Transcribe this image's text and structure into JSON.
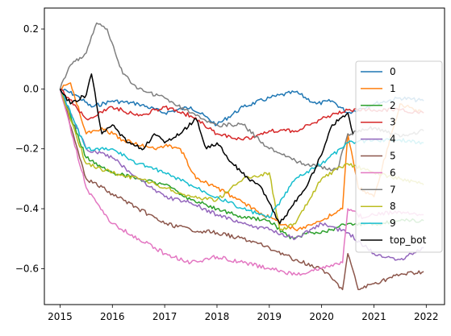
{
  "chart_data": {
    "type": "line",
    "title": "",
    "xlabel": "",
    "ylabel": "",
    "xlim": [
      2014.7,
      2022.35
    ],
    "ylim": [
      -0.72,
      0.27
    ],
    "x_ticks": [
      2015,
      2016,
      2017,
      2018,
      2019,
      2020,
      2021,
      2022
    ],
    "x_tick_labels": [
      "2015",
      "2016",
      "2017",
      "2018",
      "2019",
      "2020",
      "2021",
      "2022"
    ],
    "y_ticks": [
      -0.6,
      -0.4,
      -0.2,
      0.0,
      0.2
    ],
    "y_tick_labels": [
      "−0.6",
      "−0.4",
      "−0.2",
      "0.0",
      "0.2"
    ],
    "grid": false,
    "legend_position": "right",
    "series": [
      {
        "name": "0",
        "color": "#1f77b4",
        "x": [
          2015.0,
          2015.3,
          2015.6,
          2016.0,
          2016.5,
          2017.0,
          2017.5,
          2018.0,
          2018.5,
          2019.0,
          2019.5,
          2019.9,
          2020.2,
          2020.5,
          2021.0,
          2021.5,
          2021.95
        ],
        "y": [
          0.0,
          -0.02,
          -0.06,
          -0.04,
          -0.05,
          -0.08,
          -0.06,
          -0.12,
          -0.06,
          -0.03,
          -0.01,
          -0.05,
          -0.04,
          -0.08,
          -0.05,
          -0.03,
          -0.04
        ]
      },
      {
        "name": "1",
        "color": "#ff7f0e",
        "x": [
          2015.0,
          2015.2,
          2015.5,
          2015.8,
          2016.2,
          2016.8,
          2017.0,
          2017.3,
          2017.6,
          2018.0,
          2018.5,
          2019.0,
          2019.5,
          2020.0,
          2020.4,
          2020.5,
          2020.7,
          2021.0,
          2021.5,
          2021.95
        ],
        "y": [
          0.0,
          0.02,
          -0.15,
          -0.13,
          -0.17,
          -0.2,
          -0.19,
          -0.2,
          -0.3,
          -0.33,
          -0.38,
          -0.43,
          -0.47,
          -0.44,
          -0.4,
          -0.15,
          -0.33,
          -0.36,
          -0.05,
          -0.08
        ]
      },
      {
        "name": "2",
        "color": "#2ca02c",
        "x": [
          2015.0,
          2015.5,
          2016.0,
          2016.5,
          2017.0,
          2017.5,
          2018.0,
          2018.5,
          2019.0,
          2019.4,
          2019.8,
          2020.2,
          2020.5,
          2021.0,
          2021.5,
          2021.95
        ],
        "y": [
          0.0,
          -0.23,
          -0.28,
          -0.3,
          -0.32,
          -0.37,
          -0.4,
          -0.43,
          -0.44,
          -0.5,
          -0.48,
          -0.47,
          -0.45,
          -0.45,
          -0.44,
          -0.44
        ]
      },
      {
        "name": "3",
        "color": "#d62728",
        "x": [
          2015.0,
          2015.5,
          2016.0,
          2016.5,
          2017.0,
          2017.5,
          2018.0,
          2018.5,
          2019.0,
          2019.5,
          2020.0,
          2020.5,
          2021.0,
          2021.5,
          2021.95
        ],
        "y": [
          0.0,
          -0.1,
          -0.06,
          -0.09,
          -0.06,
          -0.09,
          -0.15,
          -0.17,
          -0.14,
          -0.14,
          -0.1,
          -0.07,
          -0.07,
          -0.07,
          -0.08
        ]
      },
      {
        "name": "4",
        "color": "#9467bd",
        "x": [
          2015.0,
          2015.5,
          2016.0,
          2016.5,
          2017.0,
          2017.5,
          2018.0,
          2018.5,
          2019.0,
          2019.5,
          2020.0,
          2020.5,
          2021.0,
          2021.5,
          2021.95
        ],
        "y": [
          0.0,
          -0.2,
          -0.23,
          -0.3,
          -0.36,
          -0.38,
          -0.42,
          -0.45,
          -0.47,
          -0.5,
          -0.45,
          -0.48,
          -0.55,
          -0.57,
          -0.53
        ]
      },
      {
        "name": "5",
        "color": "#8c564b",
        "x": [
          2015.0,
          2015.5,
          2016.0,
          2016.5,
          2017.0,
          2017.5,
          2018.0,
          2018.5,
          2019.0,
          2019.5,
          2020.0,
          2020.4,
          2020.5,
          2020.7,
          2021.0,
          2021.5,
          2021.95
        ],
        "y": [
          0.0,
          -0.3,
          -0.35,
          -0.4,
          -0.45,
          -0.47,
          -0.48,
          -0.5,
          -0.53,
          -0.57,
          -0.6,
          -0.67,
          -0.55,
          -0.67,
          -0.65,
          -0.62,
          -0.61
        ]
      },
      {
        "name": "6",
        "color": "#e377c2",
        "x": [
          2015.0,
          2015.5,
          2016.0,
          2016.5,
          2017.0,
          2017.5,
          2018.0,
          2018.5,
          2019.0,
          2019.5,
          2020.0,
          2020.4,
          2020.5,
          2020.8,
          2021.0,
          2021.5,
          2021.95
        ],
        "y": [
          0.0,
          -0.33,
          -0.45,
          -0.5,
          -0.55,
          -0.58,
          -0.56,
          -0.58,
          -0.6,
          -0.62,
          -0.6,
          -0.58,
          -0.4,
          -0.43,
          -0.42,
          -0.41,
          -0.42
        ]
      },
      {
        "name": "7",
        "color": "#7f7f7f",
        "x": [
          2015.0,
          2015.2,
          2015.5,
          2015.7,
          2015.9,
          2016.2,
          2016.5,
          2017.0,
          2017.5,
          2018.0,
          2018.5,
          2019.0,
          2019.5,
          2019.9,
          2020.3,
          2020.5,
          2021.0,
          2021.5,
          2021.95
        ],
        "y": [
          0.0,
          0.08,
          0.12,
          0.22,
          0.2,
          0.05,
          0.0,
          -0.03,
          -0.08,
          -0.12,
          -0.12,
          -0.2,
          -0.24,
          -0.26,
          -0.27,
          -0.15,
          -0.13,
          -0.16,
          -0.14
        ]
      },
      {
        "name": "8",
        "color": "#bcbd22",
        "x": [
          2015.0,
          2015.5,
          2016.0,
          2016.5,
          2017.0,
          2017.5,
          2018.0,
          2018.5,
          2019.0,
          2019.2,
          2019.5,
          2020.0,
          2020.5,
          2021.0,
          2021.5,
          2021.95
        ],
        "y": [
          0.0,
          -0.25,
          -0.28,
          -0.3,
          -0.33,
          -0.36,
          -0.37,
          -0.3,
          -0.28,
          -0.47,
          -0.45,
          -0.3,
          -0.25,
          -0.28,
          -0.3,
          -0.32
        ]
      },
      {
        "name": "9",
        "color": "#17becf",
        "x": [
          2015.0,
          2015.5,
          2016.0,
          2016.5,
          2017.0,
          2017.5,
          2018.0,
          2018.5,
          2019.0,
          2019.5,
          2020.0,
          2020.5,
          2021.0,
          2021.5,
          2021.95
        ],
        "y": [
          0.0,
          -0.2,
          -0.2,
          -0.25,
          -0.28,
          -0.32,
          -0.36,
          -0.4,
          -0.43,
          -0.3,
          -0.25,
          -0.18,
          -0.17,
          -0.17,
          -0.18
        ]
      },
      {
        "name": "top_bot",
        "color": "#000000",
        "x": [
          2015.0,
          2015.2,
          2015.5,
          2015.6,
          2015.8,
          2016.0,
          2016.3,
          2016.6,
          2016.8,
          2017.0,
          2017.3,
          2017.6,
          2017.8,
          2018.0,
          2018.3,
          2018.6,
          2018.8,
          2019.0,
          2019.2,
          2019.4,
          2019.7,
          2020.0,
          2020.2,
          2020.5,
          2020.6
        ],
        "y": [
          0.0,
          -0.05,
          -0.02,
          0.05,
          -0.15,
          -0.12,
          -0.18,
          -0.2,
          -0.15,
          -0.18,
          -0.15,
          -0.1,
          -0.2,
          -0.18,
          -0.25,
          -0.3,
          -0.32,
          -0.38,
          -0.45,
          -0.4,
          -0.33,
          -0.22,
          -0.12,
          -0.08,
          -0.15
        ]
      }
    ]
  }
}
